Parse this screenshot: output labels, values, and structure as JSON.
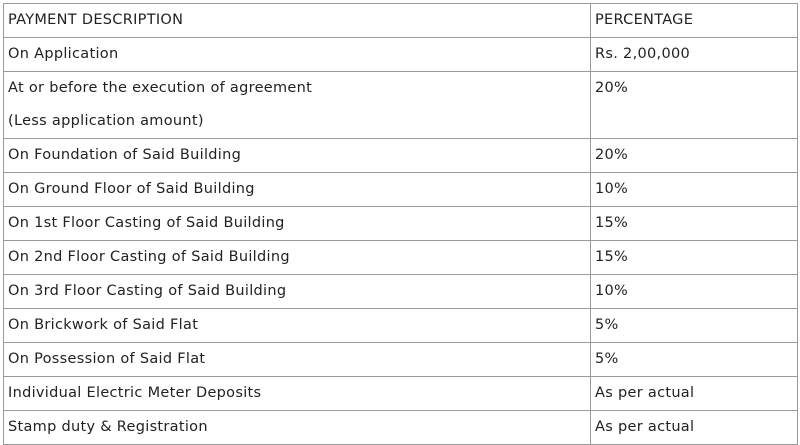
{
  "table": {
    "header": [
      "PAYMENT DESCRIPTION",
      "PERCENTAGE"
    ],
    "rows": [
      [
        "On Application",
        "Rs. 2,00,000"
      ],
      [
        [
          "At or before the execution of agreement",
          "(Less application amount)"
        ],
        "20%"
      ],
      [
        "On Foundation of Said Building",
        "20%"
      ],
      [
        "On Ground Floor of Said Building",
        "10%"
      ],
      [
        "On 1st Floor Casting of Said Building",
        "15%"
      ],
      [
        "On 2nd Floor Casting of Said Building",
        "15%"
      ],
      [
        "On 3rd Floor Casting of Said Building",
        "10%"
      ],
      [
        "On Brickwork of Said Flat",
        "5%"
      ],
      [
        "On Possession of Said Flat",
        "5%"
      ],
      [
        "Individual Electric Meter Deposits",
        "As per actual"
      ],
      [
        "Stamp duty & Registration",
        "As per actual"
      ]
    ]
  }
}
